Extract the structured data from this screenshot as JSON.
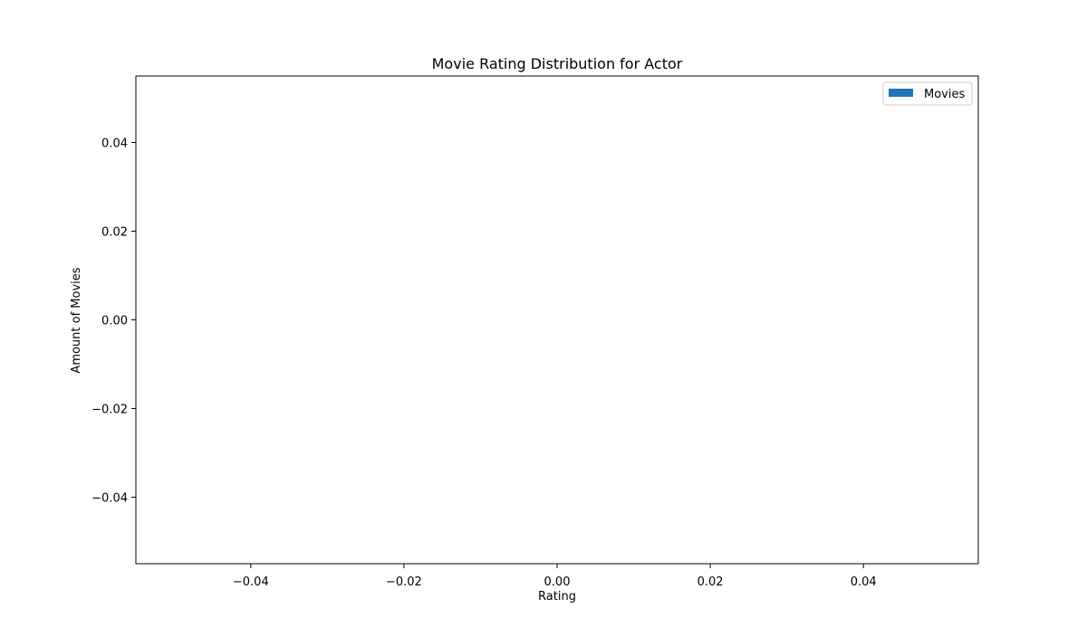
{
  "chart_data": {
    "type": "bar",
    "title": "Movie Rating Distribution for Actor",
    "xlabel": "Rating",
    "ylabel": "Amount of Movies",
    "xlim": [
      -0.055,
      0.055
    ],
    "ylim": [
      -0.055,
      0.055
    ],
    "x_ticks": [
      -0.04,
      -0.02,
      0.0,
      0.02,
      0.04
    ],
    "x_tick_labels": [
      "−0.04",
      "−0.02",
      "0.00",
      "0.02",
      "0.04"
    ],
    "y_ticks": [
      -0.04,
      -0.02,
      0.0,
      0.02,
      0.04
    ],
    "y_tick_labels": [
      "−0.04",
      "−0.02",
      "0.00",
      "0.02",
      "0.04"
    ],
    "grid": false,
    "legend_placement": "top-right",
    "series": [
      {
        "name": "Movies",
        "color": "#1f77b4",
        "x": [],
        "values": []
      }
    ]
  }
}
